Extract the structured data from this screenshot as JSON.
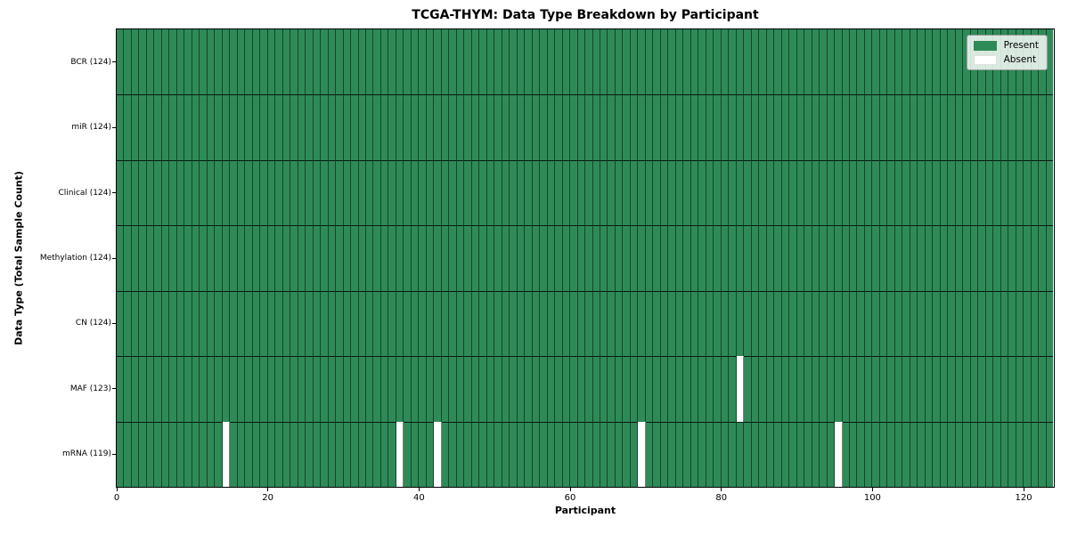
{
  "figure": {
    "title": "TCGA-THYM: Data Type Breakdown by Participant",
    "xlabel": "Participant",
    "ylabel": "Data Type (Total Sample Count)"
  },
  "legend": {
    "position": "upper right",
    "items": [
      {
        "label": "Present",
        "color": "#2e8b57"
      },
      {
        "label": "Absent",
        "color": "#ffffff"
      }
    ]
  },
  "chart_data": {
    "type": "heatmap",
    "title": "TCGA-THYM: Data Type Breakdown by Participant",
    "xlabel": "Participant",
    "ylabel": "Data Type (Total Sample Count)",
    "n_participants": 124,
    "xlim": [
      0,
      124
    ],
    "x_ticks": [
      0,
      20,
      40,
      60,
      80,
      100,
      120
    ],
    "grid": false,
    "legend_position": "upper right",
    "colors": {
      "present": "#2e8b57",
      "absent": "#ffffff",
      "cell_edge": "rgba(0,0,0,0.5)",
      "row_divider": "rgba(0,0,0,0.82)"
    },
    "rows": [
      {
        "label": "BCR (124)",
        "data_type": "BCR",
        "present_count": 124,
        "absent_participants": []
      },
      {
        "label": "miR (124)",
        "data_type": "miR",
        "present_count": 124,
        "absent_participants": []
      },
      {
        "label": "Clinical (124)",
        "data_type": "Clinical",
        "present_count": 124,
        "absent_participants": []
      },
      {
        "label": "Methylation (124)",
        "data_type": "Methylation",
        "present_count": 124,
        "absent_participants": []
      },
      {
        "label": "CN (124)",
        "data_type": "CN",
        "present_count": 124,
        "absent_participants": []
      },
      {
        "label": "MAF (123)",
        "data_type": "MAF",
        "present_count": 123,
        "absent_participants": [
          82
        ]
      },
      {
        "label": "mRNA (119)",
        "data_type": "mRNA",
        "present_count": 119,
        "absent_participants": [
          14,
          37,
          42,
          69,
          95
        ]
      }
    ]
  }
}
